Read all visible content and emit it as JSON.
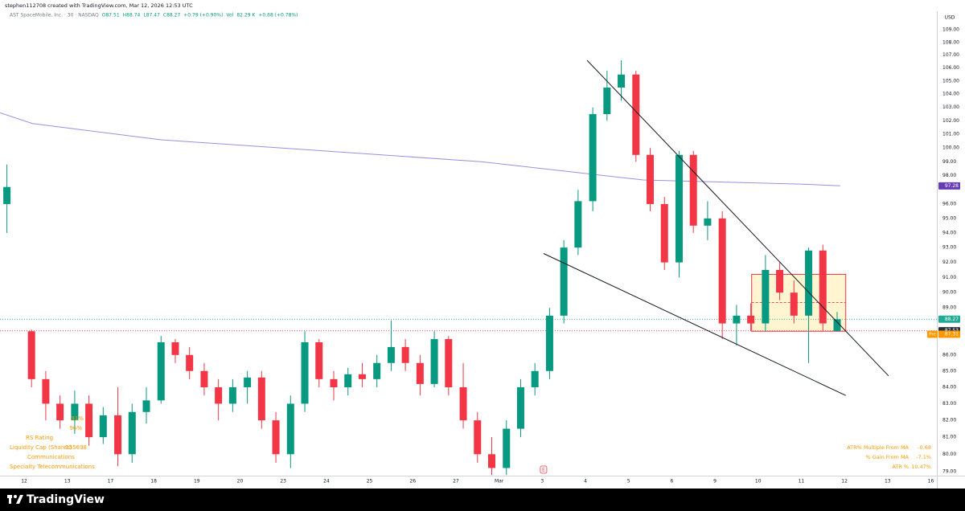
{
  "header": {
    "attribution": "stephen112708 created with TradingView.com, Mar 12, 2026 12:53 UTC"
  },
  "chart_data": {
    "type": "candlestick",
    "legend": [
      "AST SpaceMobile, Inc. · 30 · NASDAQ",
      "O87.51",
      "H88.74",
      "L87.47",
      "C88.27",
      "+0.79 (+0.90%)",
      "Vol",
      "82.29 K",
      "+0.68 (+0.78%)"
    ],
    "currency": "USD",
    "log_scale": true,
    "grid": false,
    "up_color": "#089981",
    "down_color": "#f23645",
    "x": [
      -0.4,
      0.17,
      0.5,
      0.83,
      1.17,
      1.5,
      1.83,
      2.17,
      2.5,
      2.83,
      3.17,
      3.5,
      3.83,
      4.17,
      4.5,
      4.83,
      5.17,
      5.5,
      5.83,
      6.17,
      6.5,
      6.83,
      7.17,
      7.5,
      7.83,
      8.17,
      8.5,
      8.83,
      9.17,
      9.5,
      9.83,
      10.17,
      10.5,
      10.83,
      11.17,
      11.5,
      11.83,
      12.17,
      12.5,
      12.83,
      13.17,
      13.5,
      13.83,
      14.17,
      14.5,
      14.83,
      15.17,
      15.5,
      15.83,
      16.17,
      16.5,
      16.83,
      17.17,
      17.5,
      17.83,
      18.17,
      18.5,
      18.83
    ],
    "open": [
      96,
      87.5,
      84.5,
      83,
      82,
      83,
      81,
      82.3,
      80,
      82.5,
      83.2,
      86.8,
      86,
      85,
      84,
      83,
      84,
      84.6,
      82,
      80,
      83,
      86.8,
      84.5,
      84,
      84.8,
      84.5,
      85.5,
      86.5,
      85.5,
      84.2,
      87,
      84,
      82,
      80,
      79.2,
      81.5,
      84,
      85,
      88.5,
      93,
      96.2,
      102.5,
      104.5,
      105.5,
      99.5,
      96,
      92,
      99.5,
      94.5,
      95,
      88,
      88.5,
      88,
      91.5,
      90,
      88.5,
      92.8,
      87.51
    ],
    "high": [
      98.8,
      87.6,
      85,
      83.5,
      83.8,
      83.5,
      82.8,
      84,
      83,
      84,
      87.2,
      87,
      86.5,
      85.5,
      84.5,
      84.5,
      85,
      85,
      82.5,
      83.5,
      87.5,
      87,
      85,
      85.2,
      85.5,
      86,
      88.2,
      87,
      86,
      87.5,
      87.2,
      85.5,
      82.5,
      81,
      82,
      84.5,
      85.5,
      89,
      93.5,
      97,
      103,
      105.8,
      106.6,
      105.8,
      100,
      96.5,
      99.8,
      99.8,
      96.2,
      95.5,
      89.2,
      89.3,
      92.5,
      92,
      90.8,
      93,
      93.2,
      88.74
    ],
    "low": [
      94,
      84,
      82,
      81.5,
      81.2,
      80.5,
      80.6,
      79.3,
      79.5,
      81.8,
      83,
      85.5,
      84.5,
      83.5,
      82,
      82.5,
      83,
      81.5,
      79.5,
      79.2,
      82.5,
      84,
      83.2,
      83.5,
      84,
      84,
      85,
      85,
      83.5,
      84,
      83.5,
      81.5,
      79.5,
      78.8,
      78.8,
      81,
      83.5,
      84.5,
      88,
      92.5,
      95.5,
      102,
      103.5,
      99,
      95.5,
      91.5,
      91,
      94,
      93.5,
      87,
      86.6,
      87.5,
      87.5,
      89.5,
      88,
      85.5,
      87.5,
      87.47
    ],
    "close": [
      97.2,
      84.5,
      83,
      82,
      83,
      81,
      82.3,
      80,
      82.5,
      83.2,
      86.8,
      86,
      85,
      84,
      83,
      84,
      84.6,
      82,
      80,
      83,
      86.8,
      84.5,
      84,
      84.8,
      84.5,
      85.5,
      86.5,
      85.5,
      84.2,
      87,
      84,
      82,
      80,
      79.2,
      81.5,
      84,
      85,
      88.5,
      93,
      96.2,
      102.5,
      104.5,
      105.5,
      99.5,
      96,
      92,
      99.5,
      94.5,
      95,
      88,
      88.5,
      88,
      91.5,
      90,
      88.5,
      92.8,
      88,
      88.27
    ],
    "xlim": [
      -0.56,
      21.14
    ],
    "xticks": [
      {
        "value": 0,
        "label": "12"
      },
      {
        "value": 1,
        "label": "13"
      },
      {
        "value": 2,
        "label": "17"
      },
      {
        "value": 3,
        "label": "18"
      },
      {
        "value": 4,
        "label": "19"
      },
      {
        "value": 5,
        "label": "20"
      },
      {
        "value": 6,
        "label": "23"
      },
      {
        "value": 7,
        "label": "24"
      },
      {
        "value": 8,
        "label": "25"
      },
      {
        "value": 9,
        "label": "26"
      },
      {
        "value": 10,
        "label": "27"
      },
      {
        "value": 11,
        "label": "Mar"
      },
      {
        "value": 12,
        "label": "3"
      },
      {
        "value": 13,
        "label": "4"
      },
      {
        "value": 14,
        "label": "5"
      },
      {
        "value": 15,
        "label": "6"
      },
      {
        "value": 16,
        "label": "9"
      },
      {
        "value": 17,
        "label": "10"
      },
      {
        "value": 18,
        "label": "11"
      },
      {
        "value": 19,
        "label": "12"
      },
      {
        "value": 20,
        "label": "13"
      },
      {
        "value": 21,
        "label": "16"
      }
    ],
    "ylim": [
      78.76,
      110.48
    ],
    "yticks": [
      {
        "value": 79,
        "label": "79.00"
      },
      {
        "value": 80,
        "label": "80.00"
      },
      {
        "value": 81,
        "label": "81.00"
      },
      {
        "value": 82,
        "label": "82.00"
      },
      {
        "value": 83,
        "label": "83.00"
      },
      {
        "value": 84,
        "label": "84.00"
      },
      {
        "value": 85,
        "label": "85.00"
      },
      {
        "value": 86,
        "label": "86.00"
      },
      {
        "value": 89,
        "label": "89.00"
      },
      {
        "value": 90,
        "label": "90.00"
      },
      {
        "value": 91,
        "label": "91.00"
      },
      {
        "value": 92,
        "label": "92.00"
      },
      {
        "value": 93,
        "label": "93.00"
      },
      {
        "value": 94,
        "label": "94.00"
      },
      {
        "value": 95,
        "label": "95.00"
      },
      {
        "value": 96,
        "label": "96.00"
      },
      {
        "value": 98,
        "label": "98.00"
      },
      {
        "value": 99,
        "label": "99.00"
      },
      {
        "value": 100,
        "label": "100.00"
      },
      {
        "value": 101,
        "label": "101.00"
      },
      {
        "value": 102,
        "label": "102.00"
      },
      {
        "value": 103,
        "label": "103.00"
      },
      {
        "value": 104,
        "label": "104.00"
      },
      {
        "value": 105,
        "label": "105.00"
      },
      {
        "value": 106,
        "label": "106.00"
      },
      {
        "value": 107,
        "label": "107.00"
      },
      {
        "value": 108,
        "label": "108.00"
      },
      {
        "value": 109,
        "label": "109.00"
      }
    ],
    "moving_average": {
      "color": "#9c8fe0",
      "tag_color": "#673ab7",
      "x": [
        -0.56,
        0.19,
        3.17,
        6.89,
        10.61,
        14.34,
        18.06,
        18.9
      ],
      "values": [
        102.6,
        101.8,
        100.6,
        99.8,
        99.0,
        97.7,
        97.4,
        97.28
      ]
    },
    "trendlines": [
      {
        "color": "#131722",
        "x": [
          13.04,
          20.02
        ],
        "values": [
          106.6,
          84.7
        ]
      },
      {
        "color": "#131722",
        "x": [
          12.03,
          19.03
        ],
        "values": [
          92.6,
          83.5
        ]
      }
    ],
    "box": {
      "xlim": [
        16.85,
        19.03
      ],
      "ylim": [
        87.5,
        91.2
      ],
      "mid": 89.35,
      "color": "#f23645",
      "fill": "#fff3c4"
    },
    "price_lines": [
      {
        "value": 88.27,
        "color": "#22ab94",
        "line": true
      },
      {
        "value": 87.53,
        "color": "#f23645",
        "tag_color": "#2a2e39",
        "line": true
      },
      {
        "value": 87.31,
        "color": "#ff9800",
        "tag": "Pre",
        "line": false
      }
    ],
    "earnings_marker": {
      "x": 12.03,
      "label": "E"
    },
    "stats_left": [
      "91%",
      "96%",
      "RS Rating",
      "Liquidity Cap (Shares)",
      "155698",
      "Communications",
      "Specialty Telecommunications"
    ],
    "stats_right": [
      [
        "ATR% Multiple From MA",
        "-0.68"
      ],
      [
        "% Gain From MA",
        "-7.1%"
      ],
      [
        "ATR %",
        "10.47%"
      ]
    ]
  },
  "footer": {
    "brand": "TradingView"
  }
}
